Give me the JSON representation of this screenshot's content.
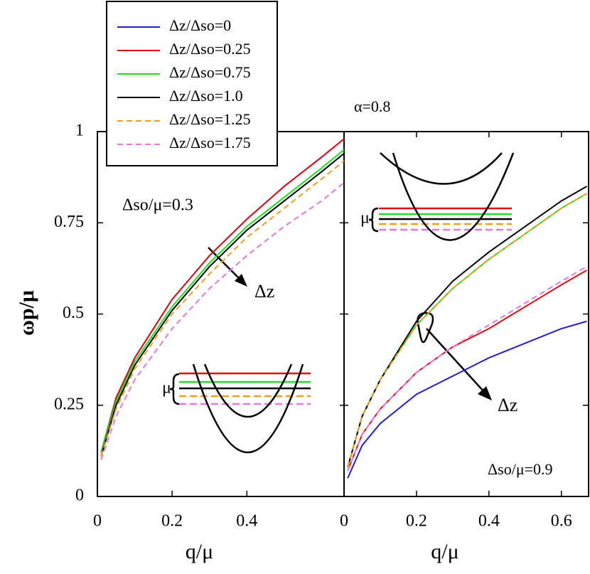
{
  "chart_data": [
    {
      "type": "line",
      "ylabel": "ωp/μ",
      "xlabel": "q/μ",
      "x": [
        0.01,
        0.05,
        0.1,
        0.2,
        0.3,
        0.4,
        0.5,
        0.6,
        0.66
      ],
      "xlim": [
        0,
        0.66
      ],
      "ylim": [
        0,
        1
      ],
      "xticks": [
        0,
        0.2,
        0.4
      ],
      "yticks": [
        0,
        0.25,
        0.5,
        0.75,
        1
      ],
      "annotations": [
        "Δso/μ=0.3",
        "μ",
        "Δz"
      ],
      "series": [
        {
          "name": "Δz/Δso=0",
          "color": "#2020d0",
          "dash": false,
          "values": [
            0.12,
            0.27,
            0.38,
            0.54,
            0.66,
            0.76,
            0.85,
            0.93,
            0.98
          ]
        },
        {
          "name": "Δz/Δso=0.25",
          "color": "#e01010",
          "dash": false,
          "values": [
            0.12,
            0.27,
            0.38,
            0.54,
            0.66,
            0.76,
            0.85,
            0.93,
            0.98
          ]
        },
        {
          "name": "Δz/Δso=0.75",
          "color": "#20e020",
          "dash": false,
          "values": [
            0.12,
            0.26,
            0.37,
            0.52,
            0.64,
            0.74,
            0.82,
            0.9,
            0.95
          ]
        },
        {
          "name": "Δz/Δso=1.0",
          "color": "#000000",
          "dash": false,
          "values": [
            0.11,
            0.25,
            0.36,
            0.51,
            0.63,
            0.73,
            0.81,
            0.89,
            0.94
          ]
        },
        {
          "name": "Δz/Δso=1.25",
          "color": "#f0a020",
          "dash": true,
          "values": [
            0.11,
            0.24,
            0.35,
            0.5,
            0.61,
            0.71,
            0.79,
            0.87,
            0.92
          ]
        },
        {
          "name": "Δz/Δso=1.75",
          "color": "#e878e0",
          "dash": true,
          "values": [
            0.1,
            0.22,
            0.32,
            0.46,
            0.57,
            0.66,
            0.74,
            0.81,
            0.86
          ]
        }
      ]
    },
    {
      "type": "line",
      "xlabel": "q/μ",
      "x": [
        0.01,
        0.05,
        0.1,
        0.2,
        0.3,
        0.4,
        0.5,
        0.6,
        0.67
      ],
      "xlim": [
        0,
        0.675
      ],
      "ylim": [
        0,
        1
      ],
      "xticks": [
        0,
        0.2,
        0.4,
        0.6
      ],
      "annotations": [
        "α=0.8",
        "Δso/μ=0.9",
        "μ",
        "Δz"
      ],
      "series": [
        {
          "color": "#2020d0",
          "dash": false,
          "values": [
            0.05,
            0.14,
            0.2,
            0.28,
            0.33,
            0.38,
            0.42,
            0.46,
            0.48
          ]
        },
        {
          "color": "#e01010",
          "dash": false,
          "values": [
            0.07,
            0.17,
            0.24,
            0.34,
            0.41,
            0.46,
            0.52,
            0.58,
            0.62
          ]
        },
        {
          "color": "#20e020",
          "dash": false,
          "values": [
            0.08,
            0.22,
            0.32,
            0.47,
            0.57,
            0.65,
            0.72,
            0.79,
            0.83
          ]
        },
        {
          "color": "#000000",
          "dash": false,
          "values": [
            0.08,
            0.22,
            0.32,
            0.48,
            0.59,
            0.67,
            0.74,
            0.81,
            0.85
          ]
        },
        {
          "color": "#f0a020",
          "dash": true,
          "values": [
            0.08,
            0.22,
            0.32,
            0.47,
            0.57,
            0.65,
            0.72,
            0.79,
            0.83
          ]
        },
        {
          "color": "#e878e0",
          "dash": true,
          "values": [
            0.07,
            0.17,
            0.24,
            0.34,
            0.41,
            0.47,
            0.53,
            0.59,
            0.63
          ]
        }
      ]
    }
  ]
}
